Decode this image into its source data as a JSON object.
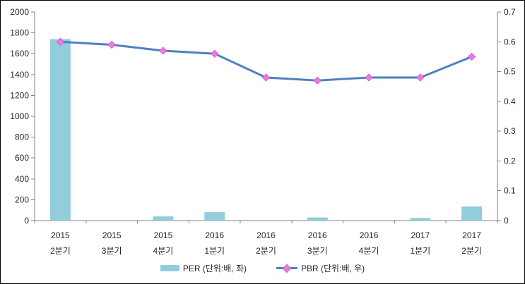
{
  "chart_data": {
    "type": "combo-bar-line",
    "title": "",
    "categories": [
      {
        "line1": "2015",
        "line2": "2분기"
      },
      {
        "line1": "2015",
        "line2": "3분기"
      },
      {
        "line1": "2015",
        "line2": "4분기"
      },
      {
        "line1": "2016",
        "line2": "1분기"
      },
      {
        "line1": "2016",
        "line2": "2분기"
      },
      {
        "line1": "2016",
        "line2": "3분기"
      },
      {
        "line1": "2016",
        "line2": "4분기"
      },
      {
        "line1": "2017",
        "line2": "1분기"
      },
      {
        "line1": "2017",
        "line2": "2분기"
      }
    ],
    "series": [
      {
        "name": "PER (단위:배, 좌)",
        "type": "bar",
        "axis": "left",
        "color": "#92CDDC",
        "values": [
          1740,
          0,
          40,
          80,
          0,
          30,
          0,
          25,
          135
        ]
      },
      {
        "name": "PBR (단위:배, 우)",
        "type": "line",
        "axis": "right",
        "color": "#4F81BD",
        "marker": "diamond",
        "marker_color": "#EA7CDF",
        "marker_edge_color": "#D95FD0",
        "values": [
          0.6,
          0.59,
          0.57,
          0.56,
          0.48,
          0.47,
          0.48,
          0.48,
          0.55
        ]
      }
    ],
    "axes": {
      "left": {
        "min": 0,
        "max": 2000,
        "step": 200,
        "ticks": [
          "0",
          "200",
          "400",
          "600",
          "800",
          "1000",
          "1200",
          "1400",
          "1600",
          "1800",
          "2000"
        ]
      },
      "right": {
        "min": 0,
        "max": 0.7,
        "step": 0.1,
        "ticks": [
          "0",
          "0.1",
          "0.2",
          "0.3",
          "0.4",
          "0.5",
          "0.6",
          "0.7"
        ]
      }
    },
    "grid": false,
    "legend_position": "bottom",
    "colors": {
      "axis": "#808080",
      "text": "#262626",
      "background": "#FFFFFF",
      "frame_border": "#000000"
    }
  }
}
